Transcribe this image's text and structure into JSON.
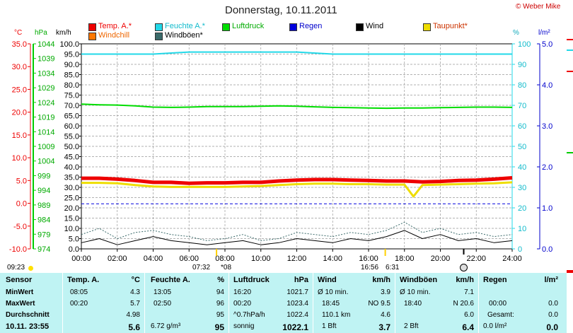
{
  "title": "Donnerstag, 10.11.2011",
  "copyright": "© Weber Mike",
  "units": {
    "temp": "°C",
    "press": "hPa",
    "wind": "km/h",
    "humidity": "%",
    "rain": "l/m²"
  },
  "legend": [
    {
      "label": "Temp. A.*",
      "color": "#ee0000"
    },
    {
      "label": "Feuchte A.*",
      "color": "#22d8e8"
    },
    {
      "label": "Luftdruck",
      "color": "#00dd00"
    },
    {
      "label": "Regen",
      "color": "#0000dd"
    },
    {
      "label": "Wind",
      "color": "#000000"
    },
    {
      "label": "Taupunkt*",
      "color": "#eedd00"
    },
    {
      "label": "Windchill",
      "color": "#ff7700"
    },
    {
      "label": "Windböen*",
      "color": "#3a6a6a"
    }
  ],
  "axes": {
    "temp_ticks": [
      "35.0",
      "30.0",
      "25.0",
      "20.0",
      "15.0",
      "10.0",
      "5.0",
      "0.0",
      "-5.0",
      "-10.0"
    ],
    "press_ticks": [
      "1044",
      "1039",
      "1034",
      "1029",
      "1024",
      "1019",
      "1014",
      "1009",
      "1004",
      "999",
      "994",
      "989",
      "984",
      "979",
      "974"
    ],
    "wind_ticks": [
      "100.0",
      "95.0",
      "90.0",
      "85.0",
      "80.0",
      "75.0",
      "70.0",
      "65.0",
      "60.0",
      "55.0",
      "50.0",
      "45.0",
      "40.0",
      "35.0",
      "30.0",
      "25.0",
      "20.0",
      "15.0",
      "10.0",
      "5.0",
      "0.0"
    ],
    "hum_ticks": [
      "100",
      "90",
      "80",
      "70",
      "60",
      "50",
      "40",
      "30",
      "20",
      "10",
      "0"
    ],
    "rain_ticks": [
      "5.0",
      "4.0",
      "3.0",
      "2.0",
      "1.0",
      "0.0"
    ],
    "x_ticks": [
      "00:00",
      "02:00",
      "04:00",
      "06:00",
      "08:00",
      "10:00",
      "12:00",
      "14:00",
      "16:00",
      "18:00",
      "20:00",
      "22:00",
      "24:00"
    ]
  },
  "sun": {
    "sunrise_left": "09:23",
    "sunrise_time": "07:32",
    "sunrise_suffix": "*08",
    "sunset_time": "16:56",
    "sunset_suffix": "6:31"
  },
  "chart_data": {
    "type": "line",
    "title": "Donnerstag, 10.11.2011",
    "x_unit": "hours",
    "x_range": [
      0,
      24
    ],
    "series": [
      {
        "name": "Temp. A.*",
        "axis": "temp",
        "ylim": [
          -10,
          35
        ],
        "color": "#ee0000",
        "x": [
          0,
          1,
          2,
          3,
          4,
          5,
          6,
          7,
          8,
          9,
          10,
          11,
          12,
          13,
          14,
          15,
          16,
          17,
          18,
          19,
          20,
          21,
          22,
          23,
          24
        ],
        "values": [
          5.5,
          5.5,
          5.3,
          5.0,
          4.6,
          4.6,
          4.4,
          4.5,
          4.5,
          4.6,
          4.6,
          4.9,
          5.1,
          5.2,
          5.2,
          5.1,
          5.0,
          4.9,
          4.9,
          4.7,
          4.8,
          5.0,
          5.1,
          5.3,
          5.6
        ]
      },
      {
        "name": "Taupunkt*",
        "axis": "temp",
        "ylim": [
          -10,
          35
        ],
        "color": "#eedd00",
        "x": [
          0,
          1,
          2,
          3,
          4,
          5,
          6,
          7,
          8,
          9,
          10,
          11,
          12,
          13,
          14,
          15,
          16,
          17,
          18,
          18.5,
          19,
          20,
          21,
          22,
          23,
          24
        ],
        "values": [
          4.5,
          4.5,
          4.4,
          4.0,
          3.7,
          3.6,
          3.6,
          3.6,
          3.6,
          3.7,
          3.8,
          4.0,
          4.2,
          4.3,
          4.3,
          4.2,
          4.2,
          4.1,
          4.1,
          1.5,
          4.0,
          4.1,
          4.2,
          4.3,
          4.4,
          4.6
        ]
      },
      {
        "name": "Feuchte A.*",
        "axis": "humidity",
        "ylim": [
          0,
          100
        ],
        "color": "#22d8e8",
        "x": [
          0,
          2,
          4,
          6,
          8,
          10,
          12,
          14,
          16,
          18,
          20,
          22,
          24
        ],
        "values": [
          95,
          95,
          95,
          96,
          96,
          96,
          96,
          95,
          95,
          95,
          95,
          95,
          95
        ]
      },
      {
        "name": "Luftdruck",
        "axis": "press",
        "ylim": [
          974,
          1044
        ],
        "color": "#00dd00",
        "x": [
          0,
          1,
          2,
          3,
          4,
          5,
          6,
          7,
          8,
          9,
          10,
          11,
          12,
          13,
          14,
          15,
          16,
          17,
          18,
          19,
          20,
          21,
          22,
          23,
          24
        ],
        "values": [
          1023.4,
          1023.2,
          1023.1,
          1022.8,
          1022.4,
          1022.3,
          1022.4,
          1022.6,
          1022.6,
          1022.6,
          1022.7,
          1022.8,
          1022.7,
          1022.5,
          1022.3,
          1022.2,
          1022.1,
          1022.0,
          1022.1,
          1022.1,
          1022.2,
          1022.3,
          1022.4,
          1022.4,
          1022.3
        ]
      },
      {
        "name": "Regen",
        "axis": "rain",
        "ylim": [
          0,
          5
        ],
        "color": "#0000dd",
        "x": [
          0,
          24
        ],
        "values": [
          1.1,
          1.1
        ]
      },
      {
        "name": "Wind",
        "axis": "wind",
        "ylim": [
          0,
          100
        ],
        "color": "#000000",
        "x": [
          0,
          1,
          2,
          3,
          4,
          5,
          6,
          7,
          8,
          9,
          10,
          11,
          12,
          13,
          14,
          15,
          16,
          17,
          18,
          19,
          20,
          21,
          22,
          23,
          24
        ],
        "values": [
          3,
          5,
          2,
          4,
          6,
          4,
          3,
          2,
          3,
          4,
          2,
          3,
          5,
          4,
          3,
          5,
          4,
          6,
          9,
          5,
          7,
          4,
          5,
          3,
          4
        ]
      },
      {
        "name": "Windböen*",
        "axis": "wind",
        "ylim": [
          0,
          100
        ],
        "color": "#3a6a6a",
        "x": [
          0,
          1,
          2,
          3,
          4,
          5,
          6,
          7,
          8,
          9,
          10,
          11,
          12,
          13,
          14,
          15,
          16,
          17,
          18,
          19,
          20,
          21,
          22,
          23,
          24
        ],
        "values": [
          7,
          10,
          5,
          8,
          9,
          7,
          6,
          4,
          5,
          7,
          4,
          5,
          8,
          7,
          6,
          8,
          7,
          9,
          13,
          8,
          10,
          7,
          8,
          6,
          7
        ]
      }
    ]
  },
  "summary": {
    "sensor": {
      "header": "Sensor",
      "rows": [
        "MinWert",
        "MaxWert",
        "Durchschnitt",
        "10.11. 23:55"
      ]
    },
    "temp": {
      "header": "Temp. A.",
      "unit": "°C",
      "rows": [
        [
          "08:05",
          "4.3"
        ],
        [
          "00:20",
          "5.7"
        ],
        [
          "",
          "4.98"
        ],
        [
          "",
          "5.6"
        ]
      ]
    },
    "hum": {
      "header": "Feuchte A.",
      "unit": "%",
      "rows": [
        [
          "13:05",
          "94"
        ],
        [
          "02:50",
          "96"
        ],
        [
          "",
          "95"
        ],
        [
          "6.72 g/m³",
          "95"
        ]
      ]
    },
    "press": {
      "header": "Luftdruck",
      "unit": "hPa",
      "rows": [
        [
          "16:20",
          "1021.7"
        ],
        [
          "00:20",
          "1023.4"
        ],
        [
          "^0.7hPa/h",
          "1022.4"
        ],
        [
          "sonnig",
          "1022.1"
        ]
      ]
    },
    "wind": {
      "header": "Wind",
      "unit": "km/h",
      "rows": [
        [
          "Ø 10 min.",
          "3.9"
        ],
        [
          "18:45",
          "NO 9.5"
        ],
        [
          "110.1 km",
          "4.6"
        ],
        [
          "1 Bft",
          "3.7"
        ]
      ]
    },
    "gust": {
      "header": "Windböen",
      "unit": "km/h",
      "rows": [
        [
          "Ø 10 min.",
          "7.1"
        ],
        [
          "18:40",
          "N 20.6"
        ],
        [
          "",
          "6.0"
        ],
        [
          "2 Bft",
          "6.4"
        ]
      ]
    },
    "rain": {
      "header": "Regen",
      "unit": "l/m²",
      "rows": [
        [
          "",
          ""
        ],
        [
          "00:00",
          "0.0"
        ],
        [
          "Gesamt:",
          "0.0"
        ],
        [
          "0.0 l/m²",
          "0.0"
        ]
      ]
    }
  }
}
